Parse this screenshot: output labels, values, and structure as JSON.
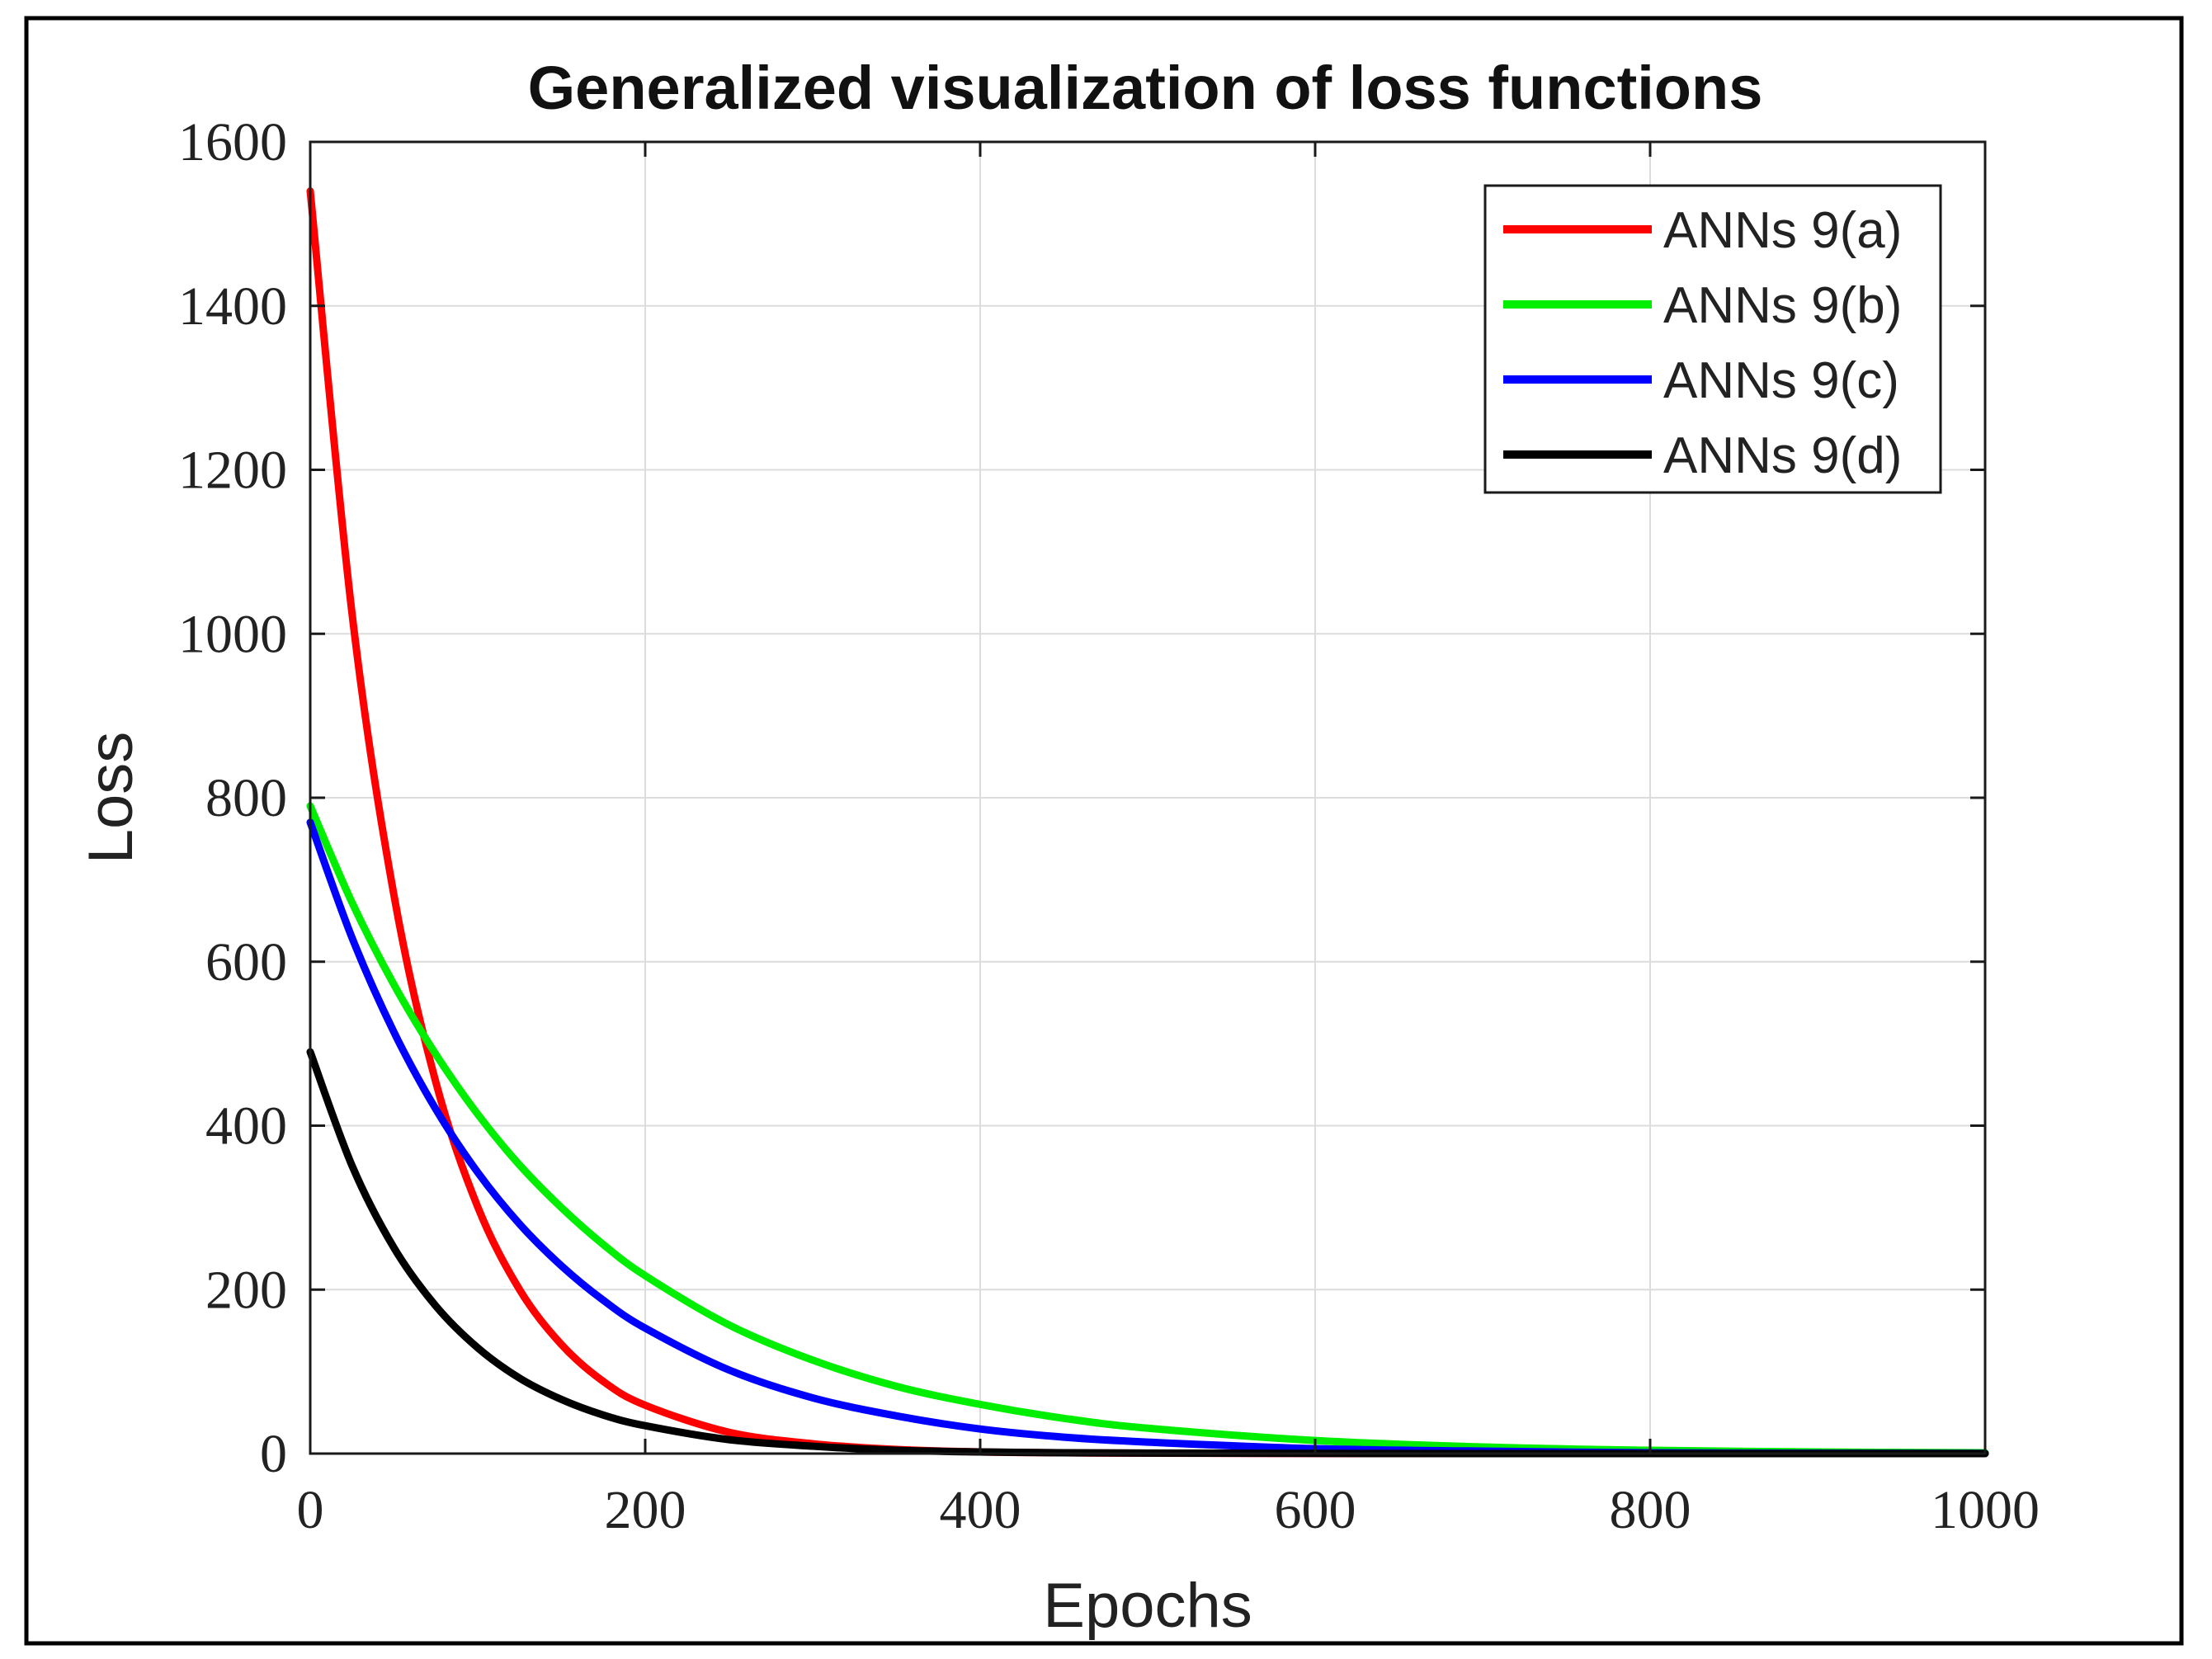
{
  "chart_data": {
    "type": "line",
    "title": "Generalized visualization of loss functions",
    "xlabel": "Epochs",
    "ylabel": "Loss",
    "xlim": [
      0,
      1000
    ],
    "ylim": [
      0,
      1600
    ],
    "xticks": [
      0,
      200,
      400,
      600,
      800,
      1000
    ],
    "yticks": [
      0,
      200,
      400,
      600,
      800,
      1000,
      1200,
      1400,
      1600
    ],
    "xtick_labels": [
      "0",
      "200",
      "400",
      "600",
      "800",
      "1000"
    ],
    "ytick_labels": [
      "0",
      "200",
      "400",
      "600",
      "800",
      "1000",
      "1200",
      "1400",
      "1600"
    ],
    "grid": true,
    "legend_position": "top-right",
    "x": [
      0,
      25,
      50,
      75,
      100,
      125,
      150,
      175,
      200,
      250,
      300,
      350,
      400,
      450,
      500,
      600,
      700,
      800,
      900,
      1000
    ],
    "series": [
      {
        "name": "ANNs 9(a)",
        "color": "#ff0000",
        "values": [
          1540,
          1024,
          681,
          453,
          301,
          200,
          133,
          88,
          59,
          26,
          12,
          5,
          2,
          1,
          0.5,
          0.1,
          0,
          0,
          0,
          0
        ]
      },
      {
        "name": "ANNs 9(b)",
        "color": "#00ee00",
        "values": [
          790,
          672,
          572,
          487,
          414,
          352,
          300,
          255,
          217,
          157,
          114,
          82,
          60,
          43,
          31,
          16,
          8,
          4,
          2,
          1
        ]
      },
      {
        "name": "ANNs 9(c)",
        "color": "#0000ff",
        "values": [
          770,
          629,
          514,
          420,
          343,
          280,
          229,
          187,
          153,
          102,
          68,
          46,
          30,
          20,
          14,
          6,
          3,
          1,
          0.5,
          0.2
        ]
      },
      {
        "name": "ANNs 9(d)",
        "color": "#000000",
        "values": [
          490,
          351,
          251,
          180,
          129,
          92,
          66,
          47,
          34,
          17,
          9,
          4,
          2,
          1,
          0.6,
          0.2,
          0,
          0,
          0,
          0
        ]
      }
    ]
  }
}
